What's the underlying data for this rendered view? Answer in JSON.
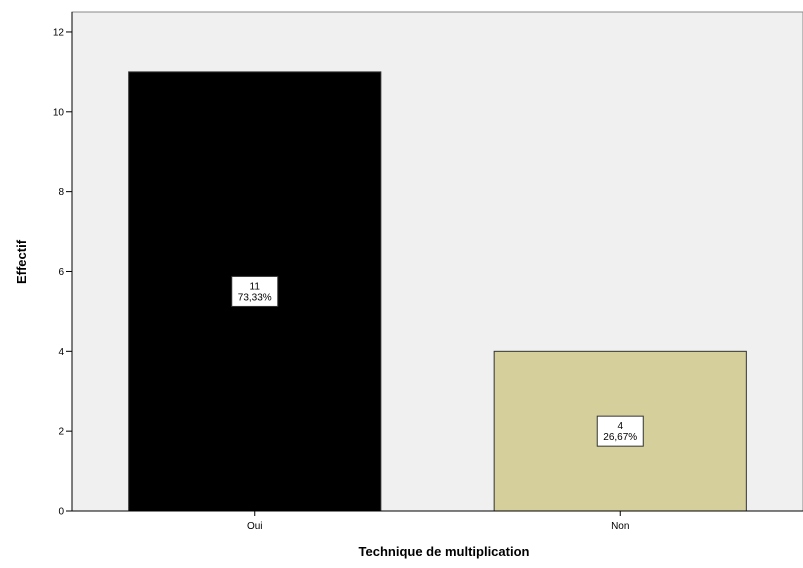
{
  "chart_data": {
    "type": "bar",
    "title": "",
    "xlabel": "Technique de multiplication",
    "ylabel": "Effectif",
    "categories": [
      "Oui",
      "Non"
    ],
    "values": [
      11,
      4
    ],
    "percent_labels": [
      "73,33%",
      "26,67%"
    ],
    "bar_colors": [
      "#000000",
      "#d5cf9b"
    ],
    "ylim": [
      0,
      12.5
    ],
    "yticks": [
      0,
      2,
      4,
      6,
      8,
      10,
      12
    ],
    "plot_background": "#f0f0f0",
    "grid": false
  }
}
